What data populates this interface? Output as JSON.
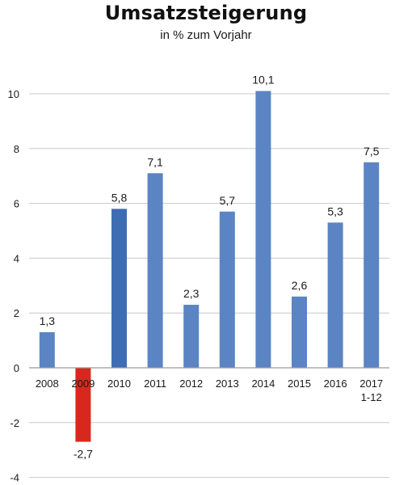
{
  "chart_data": {
    "type": "bar",
    "title": "Umsatzsteigerung",
    "subtitle": "in % zum Vorjahr",
    "xlabel": "",
    "ylabel": "",
    "ylim": [
      -4,
      11
    ],
    "yticks": [
      -4,
      -2,
      0,
      2,
      4,
      6,
      8,
      10
    ],
    "grid": true,
    "legend": "none",
    "categories": [
      [
        "2008"
      ],
      [
        "2009"
      ],
      [
        "2010"
      ],
      [
        "2011"
      ],
      [
        "2012"
      ],
      [
        "2013"
      ],
      [
        "2014"
      ],
      [
        "2015"
      ],
      [
        "2016"
      ],
      [
        "2017",
        "1-12"
      ]
    ],
    "values": [
      1.3,
      -2.7,
      5.8,
      7.1,
      2.3,
      5.7,
      10.1,
      2.6,
      5.3,
      7.5
    ],
    "data_labels": [
      "1,3",
      "-2,7",
      "5,8",
      "7,1",
      "2,3",
      "5,7",
      "10,1",
      "2,6",
      "5,3",
      "7,5"
    ],
    "bar_colors": [
      "#5b84c4",
      "#d8281e",
      "#3d6eb2",
      "#5b84c4",
      "#5b84c4",
      "#5b84c4",
      "#5b84c4",
      "#5b84c4",
      "#5b84c4",
      "#5b84c4"
    ],
    "gridline_color": "#c8c8c8",
    "axis_color": "#9a9a9a"
  }
}
